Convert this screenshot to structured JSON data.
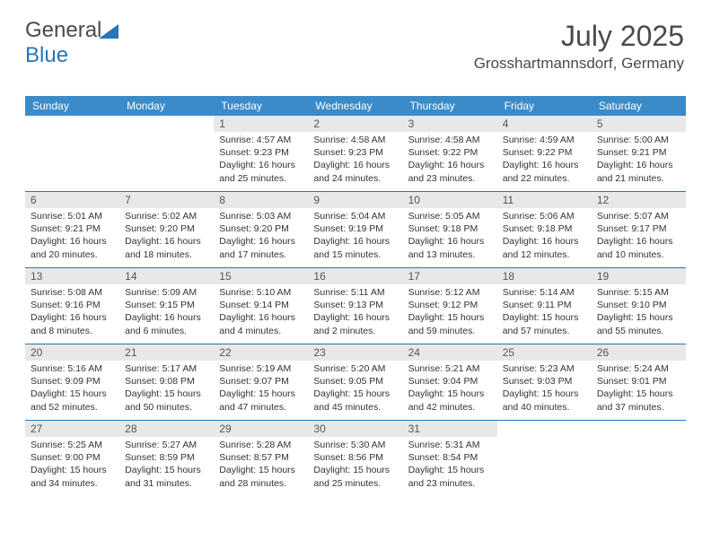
{
  "logo": {
    "text1": "General",
    "text2": "Blue"
  },
  "title": "July 2025",
  "location": "Grosshartmannsdorf, Germany",
  "colors": {
    "header_bg": "#3b8bc9",
    "header_text": "#ffffff",
    "num_bg": "#e8e8e8",
    "divider": "#2676b8",
    "text": "#333333",
    "title_color": "#4a4a4a"
  },
  "day_names": [
    "Sunday",
    "Monday",
    "Tuesday",
    "Wednesday",
    "Thursday",
    "Friday",
    "Saturday"
  ],
  "weeks": [
    [
      {
        "num": "",
        "sunrise": "",
        "sunset": "",
        "daylight1": "",
        "daylight2": ""
      },
      {
        "num": "",
        "sunrise": "",
        "sunset": "",
        "daylight1": "",
        "daylight2": ""
      },
      {
        "num": "1",
        "sunrise": "Sunrise: 4:57 AM",
        "sunset": "Sunset: 9:23 PM",
        "daylight1": "Daylight: 16 hours",
        "daylight2": "and 25 minutes."
      },
      {
        "num": "2",
        "sunrise": "Sunrise: 4:58 AM",
        "sunset": "Sunset: 9:23 PM",
        "daylight1": "Daylight: 16 hours",
        "daylight2": "and 24 minutes."
      },
      {
        "num": "3",
        "sunrise": "Sunrise: 4:58 AM",
        "sunset": "Sunset: 9:22 PM",
        "daylight1": "Daylight: 16 hours",
        "daylight2": "and 23 minutes."
      },
      {
        "num": "4",
        "sunrise": "Sunrise: 4:59 AM",
        "sunset": "Sunset: 9:22 PM",
        "daylight1": "Daylight: 16 hours",
        "daylight2": "and 22 minutes."
      },
      {
        "num": "5",
        "sunrise": "Sunrise: 5:00 AM",
        "sunset": "Sunset: 9:21 PM",
        "daylight1": "Daylight: 16 hours",
        "daylight2": "and 21 minutes."
      }
    ],
    [
      {
        "num": "6",
        "sunrise": "Sunrise: 5:01 AM",
        "sunset": "Sunset: 9:21 PM",
        "daylight1": "Daylight: 16 hours",
        "daylight2": "and 20 minutes."
      },
      {
        "num": "7",
        "sunrise": "Sunrise: 5:02 AM",
        "sunset": "Sunset: 9:20 PM",
        "daylight1": "Daylight: 16 hours",
        "daylight2": "and 18 minutes."
      },
      {
        "num": "8",
        "sunrise": "Sunrise: 5:03 AM",
        "sunset": "Sunset: 9:20 PM",
        "daylight1": "Daylight: 16 hours",
        "daylight2": "and 17 minutes."
      },
      {
        "num": "9",
        "sunrise": "Sunrise: 5:04 AM",
        "sunset": "Sunset: 9:19 PM",
        "daylight1": "Daylight: 16 hours",
        "daylight2": "and 15 minutes."
      },
      {
        "num": "10",
        "sunrise": "Sunrise: 5:05 AM",
        "sunset": "Sunset: 9:18 PM",
        "daylight1": "Daylight: 16 hours",
        "daylight2": "and 13 minutes."
      },
      {
        "num": "11",
        "sunrise": "Sunrise: 5:06 AM",
        "sunset": "Sunset: 9:18 PM",
        "daylight1": "Daylight: 16 hours",
        "daylight2": "and 12 minutes."
      },
      {
        "num": "12",
        "sunrise": "Sunrise: 5:07 AM",
        "sunset": "Sunset: 9:17 PM",
        "daylight1": "Daylight: 16 hours",
        "daylight2": "and 10 minutes."
      }
    ],
    [
      {
        "num": "13",
        "sunrise": "Sunrise: 5:08 AM",
        "sunset": "Sunset: 9:16 PM",
        "daylight1": "Daylight: 16 hours",
        "daylight2": "and 8 minutes."
      },
      {
        "num": "14",
        "sunrise": "Sunrise: 5:09 AM",
        "sunset": "Sunset: 9:15 PM",
        "daylight1": "Daylight: 16 hours",
        "daylight2": "and 6 minutes."
      },
      {
        "num": "15",
        "sunrise": "Sunrise: 5:10 AM",
        "sunset": "Sunset: 9:14 PM",
        "daylight1": "Daylight: 16 hours",
        "daylight2": "and 4 minutes."
      },
      {
        "num": "16",
        "sunrise": "Sunrise: 5:11 AM",
        "sunset": "Sunset: 9:13 PM",
        "daylight1": "Daylight: 16 hours",
        "daylight2": "and 2 minutes."
      },
      {
        "num": "17",
        "sunrise": "Sunrise: 5:12 AM",
        "sunset": "Sunset: 9:12 PM",
        "daylight1": "Daylight: 15 hours",
        "daylight2": "and 59 minutes."
      },
      {
        "num": "18",
        "sunrise": "Sunrise: 5:14 AM",
        "sunset": "Sunset: 9:11 PM",
        "daylight1": "Daylight: 15 hours",
        "daylight2": "and 57 minutes."
      },
      {
        "num": "19",
        "sunrise": "Sunrise: 5:15 AM",
        "sunset": "Sunset: 9:10 PM",
        "daylight1": "Daylight: 15 hours",
        "daylight2": "and 55 minutes."
      }
    ],
    [
      {
        "num": "20",
        "sunrise": "Sunrise: 5:16 AM",
        "sunset": "Sunset: 9:09 PM",
        "daylight1": "Daylight: 15 hours",
        "daylight2": "and 52 minutes."
      },
      {
        "num": "21",
        "sunrise": "Sunrise: 5:17 AM",
        "sunset": "Sunset: 9:08 PM",
        "daylight1": "Daylight: 15 hours",
        "daylight2": "and 50 minutes."
      },
      {
        "num": "22",
        "sunrise": "Sunrise: 5:19 AM",
        "sunset": "Sunset: 9:07 PM",
        "daylight1": "Daylight: 15 hours",
        "daylight2": "and 47 minutes."
      },
      {
        "num": "23",
        "sunrise": "Sunrise: 5:20 AM",
        "sunset": "Sunset: 9:05 PM",
        "daylight1": "Daylight: 15 hours",
        "daylight2": "and 45 minutes."
      },
      {
        "num": "24",
        "sunrise": "Sunrise: 5:21 AM",
        "sunset": "Sunset: 9:04 PM",
        "daylight1": "Daylight: 15 hours",
        "daylight2": "and 42 minutes."
      },
      {
        "num": "25",
        "sunrise": "Sunrise: 5:23 AM",
        "sunset": "Sunset: 9:03 PM",
        "daylight1": "Daylight: 15 hours",
        "daylight2": "and 40 minutes."
      },
      {
        "num": "26",
        "sunrise": "Sunrise: 5:24 AM",
        "sunset": "Sunset: 9:01 PM",
        "daylight1": "Daylight: 15 hours",
        "daylight2": "and 37 minutes."
      }
    ],
    [
      {
        "num": "27",
        "sunrise": "Sunrise: 5:25 AM",
        "sunset": "Sunset: 9:00 PM",
        "daylight1": "Daylight: 15 hours",
        "daylight2": "and 34 minutes."
      },
      {
        "num": "28",
        "sunrise": "Sunrise: 5:27 AM",
        "sunset": "Sunset: 8:59 PM",
        "daylight1": "Daylight: 15 hours",
        "daylight2": "and 31 minutes."
      },
      {
        "num": "29",
        "sunrise": "Sunrise: 5:28 AM",
        "sunset": "Sunset: 8:57 PM",
        "daylight1": "Daylight: 15 hours",
        "daylight2": "and 28 minutes."
      },
      {
        "num": "30",
        "sunrise": "Sunrise: 5:30 AM",
        "sunset": "Sunset: 8:56 PM",
        "daylight1": "Daylight: 15 hours",
        "daylight2": "and 25 minutes."
      },
      {
        "num": "31",
        "sunrise": "Sunrise: 5:31 AM",
        "sunset": "Sunset: 8:54 PM",
        "daylight1": "Daylight: 15 hours",
        "daylight2": "and 23 minutes."
      },
      {
        "num": "",
        "sunrise": "",
        "sunset": "",
        "daylight1": "",
        "daylight2": ""
      },
      {
        "num": "",
        "sunrise": "",
        "sunset": "",
        "daylight1": "",
        "daylight2": ""
      }
    ]
  ]
}
